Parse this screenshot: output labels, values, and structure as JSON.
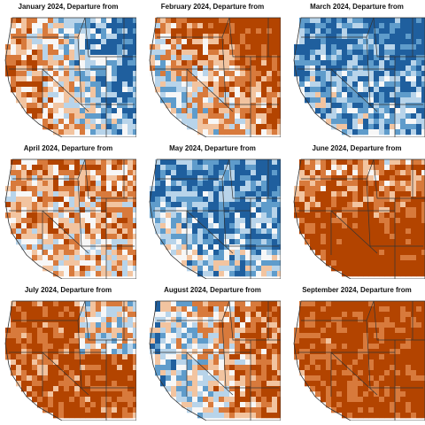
{
  "panels": [
    {
      "title": "January 2024, Departure from",
      "pattern": "mixed-cold-east",
      "warm_fraction": 0.45,
      "cold_fraction": 0.45
    },
    {
      "title": "February 2024, Departure from",
      "pattern": "warm-east-cold-southwest",
      "warm_fraction": 0.7,
      "cold_fraction": 0.2
    },
    {
      "title": "March 2024, Departure from",
      "pattern": "cold-north-mixed",
      "warm_fraction": 0.3,
      "cold_fraction": 0.55
    },
    {
      "title": "April 2024, Departure from",
      "pattern": "mild-warm",
      "warm_fraction": 0.55,
      "cold_fraction": 0.2
    },
    {
      "title": "May 2024, Departure from",
      "pattern": "cold-central",
      "warm_fraction": 0.15,
      "cold_fraction": 0.7
    },
    {
      "title": "June 2024, Departure from",
      "pattern": "warm-south",
      "warm_fraction": 0.75,
      "cold_fraction": 0.05
    },
    {
      "title": "July 2024, Departure from",
      "pattern": "warm-widespread",
      "warm_fraction": 0.85,
      "cold_fraction": 0.1
    },
    {
      "title": "August 2024, Departure from",
      "pattern": "mixed-warm-east",
      "warm_fraction": 0.55,
      "cold_fraction": 0.3
    },
    {
      "title": "September 2024, Departure from",
      "pattern": "warm-widespread-strong",
      "warm_fraction": 0.9,
      "cold_fraction": 0.05
    }
  ],
  "colors": {
    "warm_strong": "#b34400",
    "warm_mid": "#d87a3c",
    "warm_light": "#f2c4a0",
    "neutral": "#f7f7f7",
    "cold_light": "#b8d4ea",
    "cold_mid": "#5f9ccb",
    "cold_strong": "#1f5f9e",
    "border": "#333333",
    "ocean": "#ffffff"
  }
}
